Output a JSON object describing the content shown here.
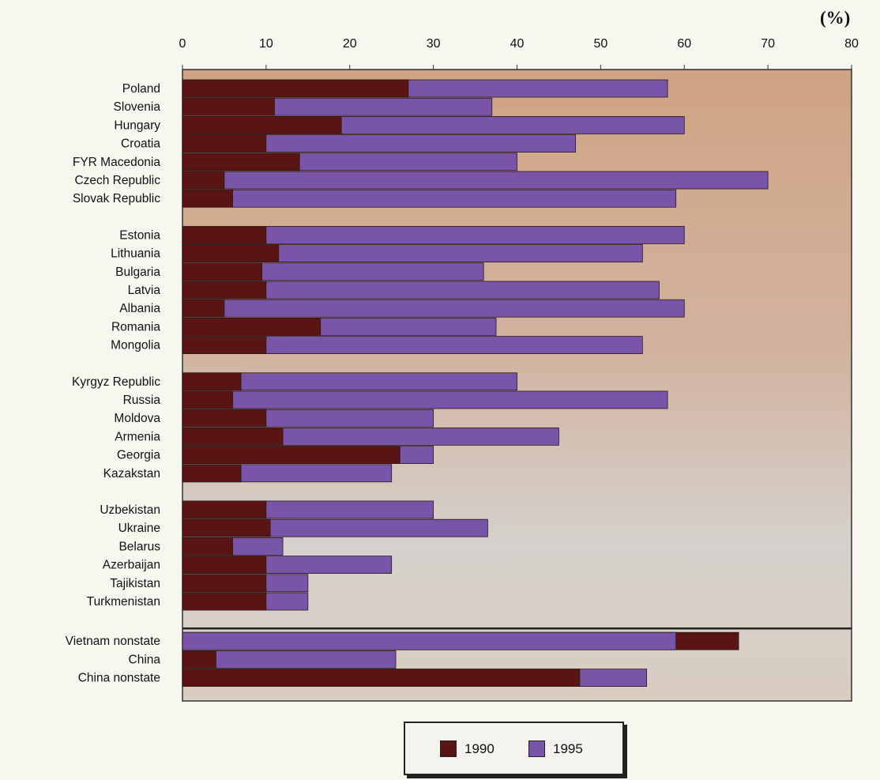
{
  "unit_label": "(%)",
  "colors": {
    "c1990": "#5a1414",
    "c1995": "#7855a8",
    "bg_top": "#cfa383",
    "bg_bottom": "#d8d6d2"
  },
  "legend": [
    {
      "label": "1990",
      "color": "#5a1414"
    },
    {
      "label": "1995",
      "color": "#7855a8"
    }
  ],
  "chart_data": {
    "type": "bar",
    "orientation": "horizontal",
    "xlim": [
      0,
      80
    ],
    "x_ticks": [
      0,
      10,
      20,
      30,
      40,
      50,
      60,
      70,
      80
    ],
    "xlabel": "",
    "ylabel": "",
    "legend_position": "bottom",
    "groups": [
      {
        "countries": [
          {
            "name": "Poland",
            "v1990": 27,
            "v1995": 58
          },
          {
            "name": "Slovenia",
            "v1990": 11,
            "v1995": 37
          },
          {
            "name": "Hungary",
            "v1990": 19,
            "v1995": 60
          },
          {
            "name": "Croatia",
            "v1990": 10,
            "v1995": 47
          },
          {
            "name": "FYR Macedonia",
            "v1990": 14,
            "v1995": 40
          },
          {
            "name": "Czech Republic",
            "v1990": 5,
            "v1995": 70
          },
          {
            "name": "Slovak Republic",
            "v1990": 6,
            "v1995": 59
          }
        ]
      },
      {
        "countries": [
          {
            "name": "Estonia",
            "v1990": 10,
            "v1995": 60
          },
          {
            "name": "Lithuania",
            "v1990": 11.5,
            "v1995": 55
          },
          {
            "name": "Bulgaria",
            "v1990": 9.5,
            "v1995": 36
          },
          {
            "name": "Latvia",
            "v1990": 10,
            "v1995": 57
          },
          {
            "name": "Albania",
            "v1990": 5,
            "v1995": 60
          },
          {
            "name": "Romania",
            "v1990": 16.5,
            "v1995": 37.5
          },
          {
            "name": "Mongolia",
            "v1990": 10,
            "v1995": 55
          }
        ]
      },
      {
        "countries": [
          {
            "name": "Kyrgyz Republic",
            "v1990": 7,
            "v1995": 40
          },
          {
            "name": "Russia",
            "v1990": 6,
            "v1995": 58
          },
          {
            "name": "Moldova",
            "v1990": 10,
            "v1995": 30
          },
          {
            "name": "Armenia",
            "v1990": 12,
            "v1995": 45
          },
          {
            "name": "Georgia",
            "v1990": 26,
            "v1995": 30
          },
          {
            "name": "Kazakstan",
            "v1990": 7,
            "v1995": 25
          }
        ]
      },
      {
        "countries": [
          {
            "name": "Uzbekistan",
            "v1990": 10,
            "v1995": 30
          },
          {
            "name": "Ukraine",
            "v1990": 10.5,
            "v1995": 36.5
          },
          {
            "name": "Belarus",
            "v1990": 6,
            "v1995": 12
          },
          {
            "name": "Azerbaijan",
            "v1990": 10,
            "v1995": 25
          },
          {
            "name": "Tajikistan",
            "v1990": 10,
            "v1995": 15
          },
          {
            "name": "Turkmenistan",
            "v1990": 10,
            "v1995": 15
          }
        ]
      },
      {
        "countries": [
          {
            "name": "Vietnam nonstate",
            "v1990": 66.5,
            "v1995": 59,
            "order": "1995-first"
          },
          {
            "name": "China",
            "v1990": 4,
            "v1995": 25.5
          },
          {
            "name": "China nonstate",
            "v1990": 47.5,
            "v1995": 55.5
          }
        ]
      }
    ]
  }
}
